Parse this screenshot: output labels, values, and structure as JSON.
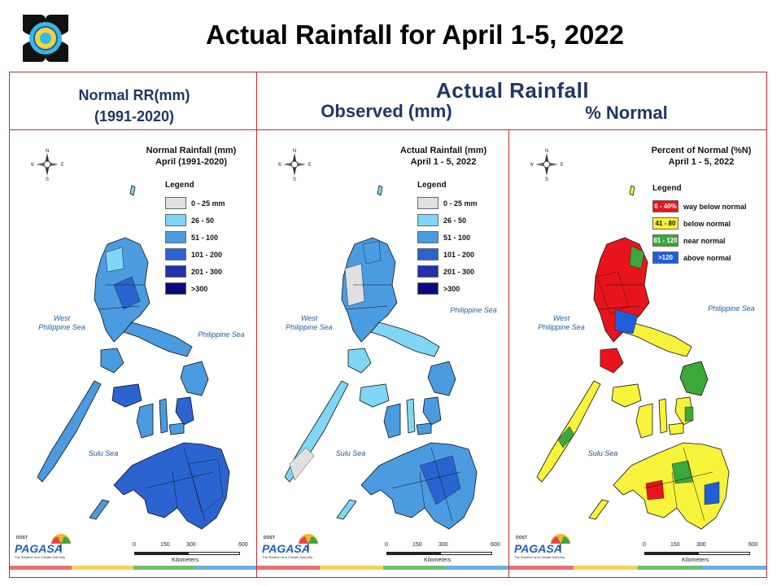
{
  "title": "Actual Rainfall for April 1-5, 2022",
  "headers": {
    "normal_line1": "Normal RR(mm)",
    "normal_line2": "(1991-2020)",
    "actual": "Actual Rainfall",
    "observed": "Observed (mm)",
    "percent": "% Normal"
  },
  "panels": {
    "normal": {
      "title_line1": "Normal Rainfall (mm)",
      "title_line2": "April (1991-2020)"
    },
    "actual": {
      "title_line1": "Actual Rainfall (mm)",
      "title_line2": "April 1 - 5, 2022"
    },
    "percent": {
      "title_line1": "Percent of Normal (%N)",
      "title_line2": "April 1 - 5, 2022"
    }
  },
  "legend_title": "Legend",
  "rain_legend": [
    {
      "label": "0 - 25 mm",
      "color": "#e0e0e0"
    },
    {
      "label": "26 - 50",
      "color": "#7fd6f5"
    },
    {
      "label": "51 - 100",
      "color": "#4a9be0"
    },
    {
      "label": "101 - 200",
      "color": "#2b64d0"
    },
    {
      "label": "201 - 300",
      "color": "#2332a8"
    },
    {
      "label": ">300",
      "color": "#0b0a7a"
    }
  ],
  "percent_legend": [
    {
      "swatch": "0 - 40%",
      "label": "way below normal",
      "color": "#e8141c"
    },
    {
      "swatch": "41 - 80",
      "label": "below normal",
      "color": "#f7f23a"
    },
    {
      "swatch": "81 - 120",
      "label": "near normal",
      "color": "#3aa83a"
    },
    {
      "swatch": ">120",
      "label": "above normal",
      "color": "#1f5ed8"
    }
  ],
  "seas": {
    "west_line1": "West",
    "west_line2": "Philippine Sea",
    "east": "Philippine Sea",
    "sulu": "Sulu Sea"
  },
  "compass": {
    "n": "N",
    "s": "S",
    "e": "E",
    "w": "W"
  },
  "scale": {
    "ticks": [
      "0",
      "150",
      "300",
      "600"
    ],
    "unit": "Kilometers"
  },
  "logo": {
    "brand": "PAGASA",
    "dost": "DOST",
    "tagline": "The Weather and Climate Authority"
  },
  "stripe_colors": [
    "#e87070",
    "#f2d35a",
    "#6fbf6a",
    "#6ab0e0"
  ]
}
